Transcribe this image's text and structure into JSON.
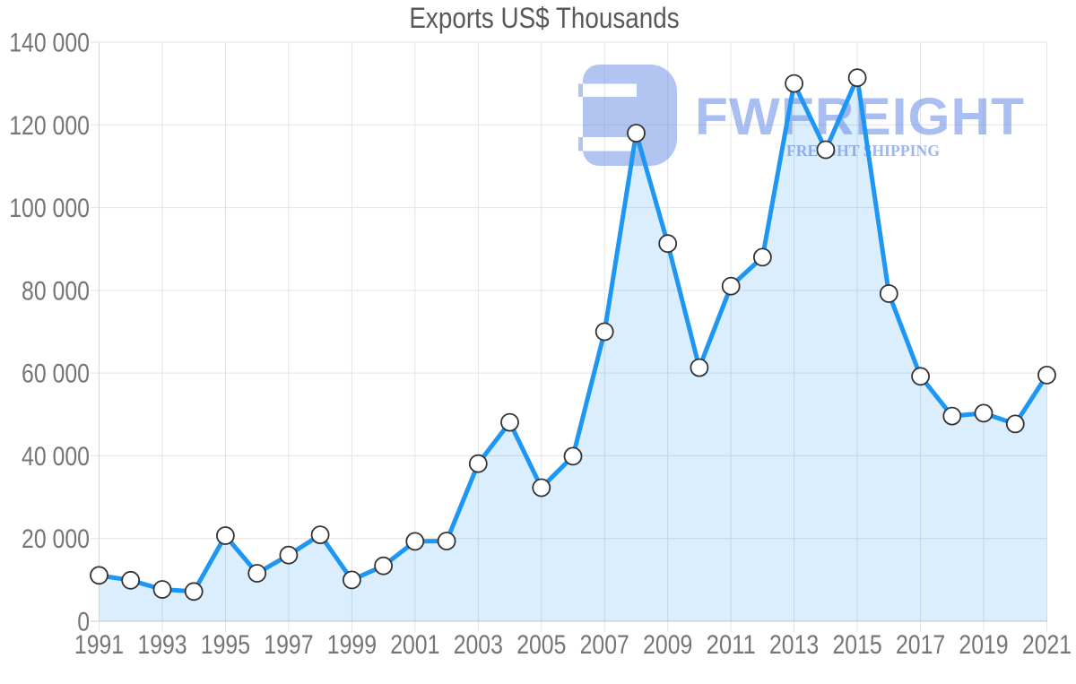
{
  "page": {
    "title": "Exports US$ Thousands"
  },
  "watermark": {
    "logo_icon": "fwfreight-logo",
    "brand": "FWFREIGHT",
    "tagline": "FREIGHT SHIPPING"
  },
  "colors": {
    "line": "#1E96F3",
    "area_fill": "rgba(30,150,243,0.16)",
    "marker_fill": "#FFFFFF",
    "marker_stroke": "#333333",
    "grid": "#E3E3E3",
    "axis_bottom": "#C9C9C9",
    "axis_left": "#D9D9D9",
    "tick_label": "#757575",
    "title": "#58595B",
    "watermark_logo": "rgba(101,139,225,0.5)",
    "watermark_brand": "rgba(99,137,230,0.55)",
    "watermark_tagline": "rgba(80,120,224,0.55)"
  },
  "chart_data": {
    "type": "area",
    "title": "Exports US$ Thousands",
    "series_name": "Exports",
    "xlabel": "",
    "ylabel": "",
    "x": [
      1991,
      1992,
      1993,
      1994,
      1995,
      1996,
      1997,
      1998,
      1999,
      2000,
      2001,
      2002,
      2003,
      2004,
      2005,
      2006,
      2007,
      2008,
      2009,
      2010,
      2011,
      2012,
      2013,
      2014,
      2015,
      2016,
      2017,
      2018,
      2019,
      2020,
      2021
    ],
    "values": [
      11100,
      9900,
      7700,
      7200,
      20700,
      11600,
      16000,
      20900,
      10000,
      13400,
      19300,
      19400,
      38100,
      48100,
      32300,
      39900,
      70000,
      118000,
      91300,
      61300,
      81000,
      88000,
      130000,
      114000,
      131400,
      79200,
      59200,
      49600,
      50300,
      47700,
      59500
    ],
    "ylim": [
      0,
      140000
    ],
    "y_ticks": [
      0,
      20000,
      40000,
      60000,
      80000,
      100000,
      120000,
      140000
    ],
    "y_tick_labels": [
      "0",
      "20 000",
      "40 000",
      "60 000",
      "80 000",
      "100 000",
      "120 000",
      "140 000"
    ],
    "x_tick_years": [
      1991,
      1993,
      1995,
      1997,
      1999,
      2001,
      2003,
      2005,
      2007,
      2009,
      2011,
      2013,
      2015,
      2017,
      2019,
      2021
    ],
    "x_tick_labels": [
      "1991",
      "1993",
      "1995",
      "1997",
      "1999",
      "2001",
      "2003",
      "2005",
      "2007",
      "2009",
      "2011",
      "2013",
      "2015",
      "2017",
      "2019",
      "2021"
    ],
    "grid": true,
    "legend": "none",
    "marker": "circle"
  }
}
